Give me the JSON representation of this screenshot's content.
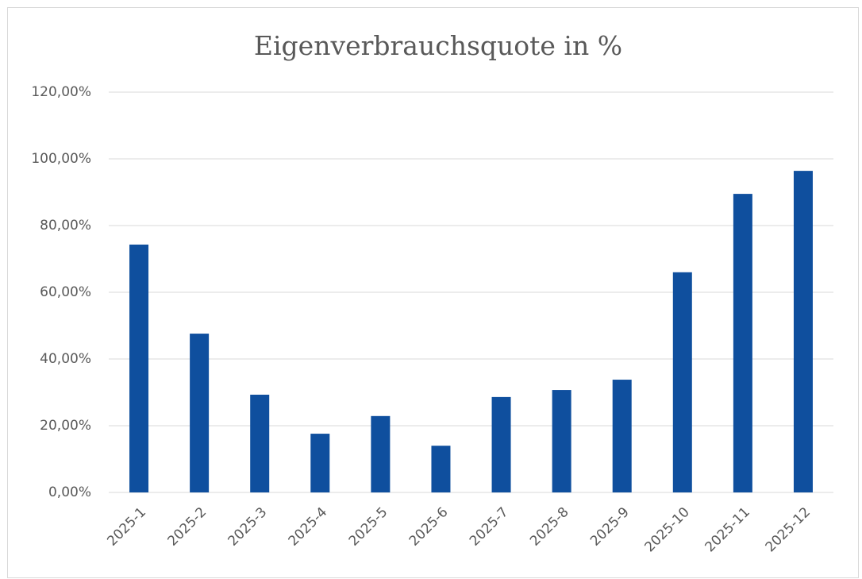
{
  "chart_data": {
    "type": "bar",
    "title": "Eigenverbrauchsquote in %",
    "categories": [
      "2025-1",
      "2025-2",
      "2025-3",
      "2025-4",
      "2025-5",
      "2025-6",
      "2025-7",
      "2025-8",
      "2025-9",
      "2025-10",
      "2025-11",
      "2025-12"
    ],
    "values": [
      74.3,
      47.6,
      29.3,
      17.6,
      22.9,
      14.0,
      28.6,
      30.7,
      33.8,
      66.0,
      89.5,
      96.4
    ],
    "color": "#0f4f9e",
    "ylim": [
      0,
      120
    ],
    "yticks": [
      {
        "value": 0,
        "label": "0,00%"
      },
      {
        "value": 20,
        "label": "20,00%"
      },
      {
        "value": 40,
        "label": "40,00%"
      },
      {
        "value": 60,
        "label": "60,00%"
      },
      {
        "value": 80,
        "label": "80,00%"
      },
      {
        "value": 100,
        "label": "100,00%"
      },
      {
        "value": 120,
        "label": "120,00%"
      }
    ],
    "grid": true
  }
}
